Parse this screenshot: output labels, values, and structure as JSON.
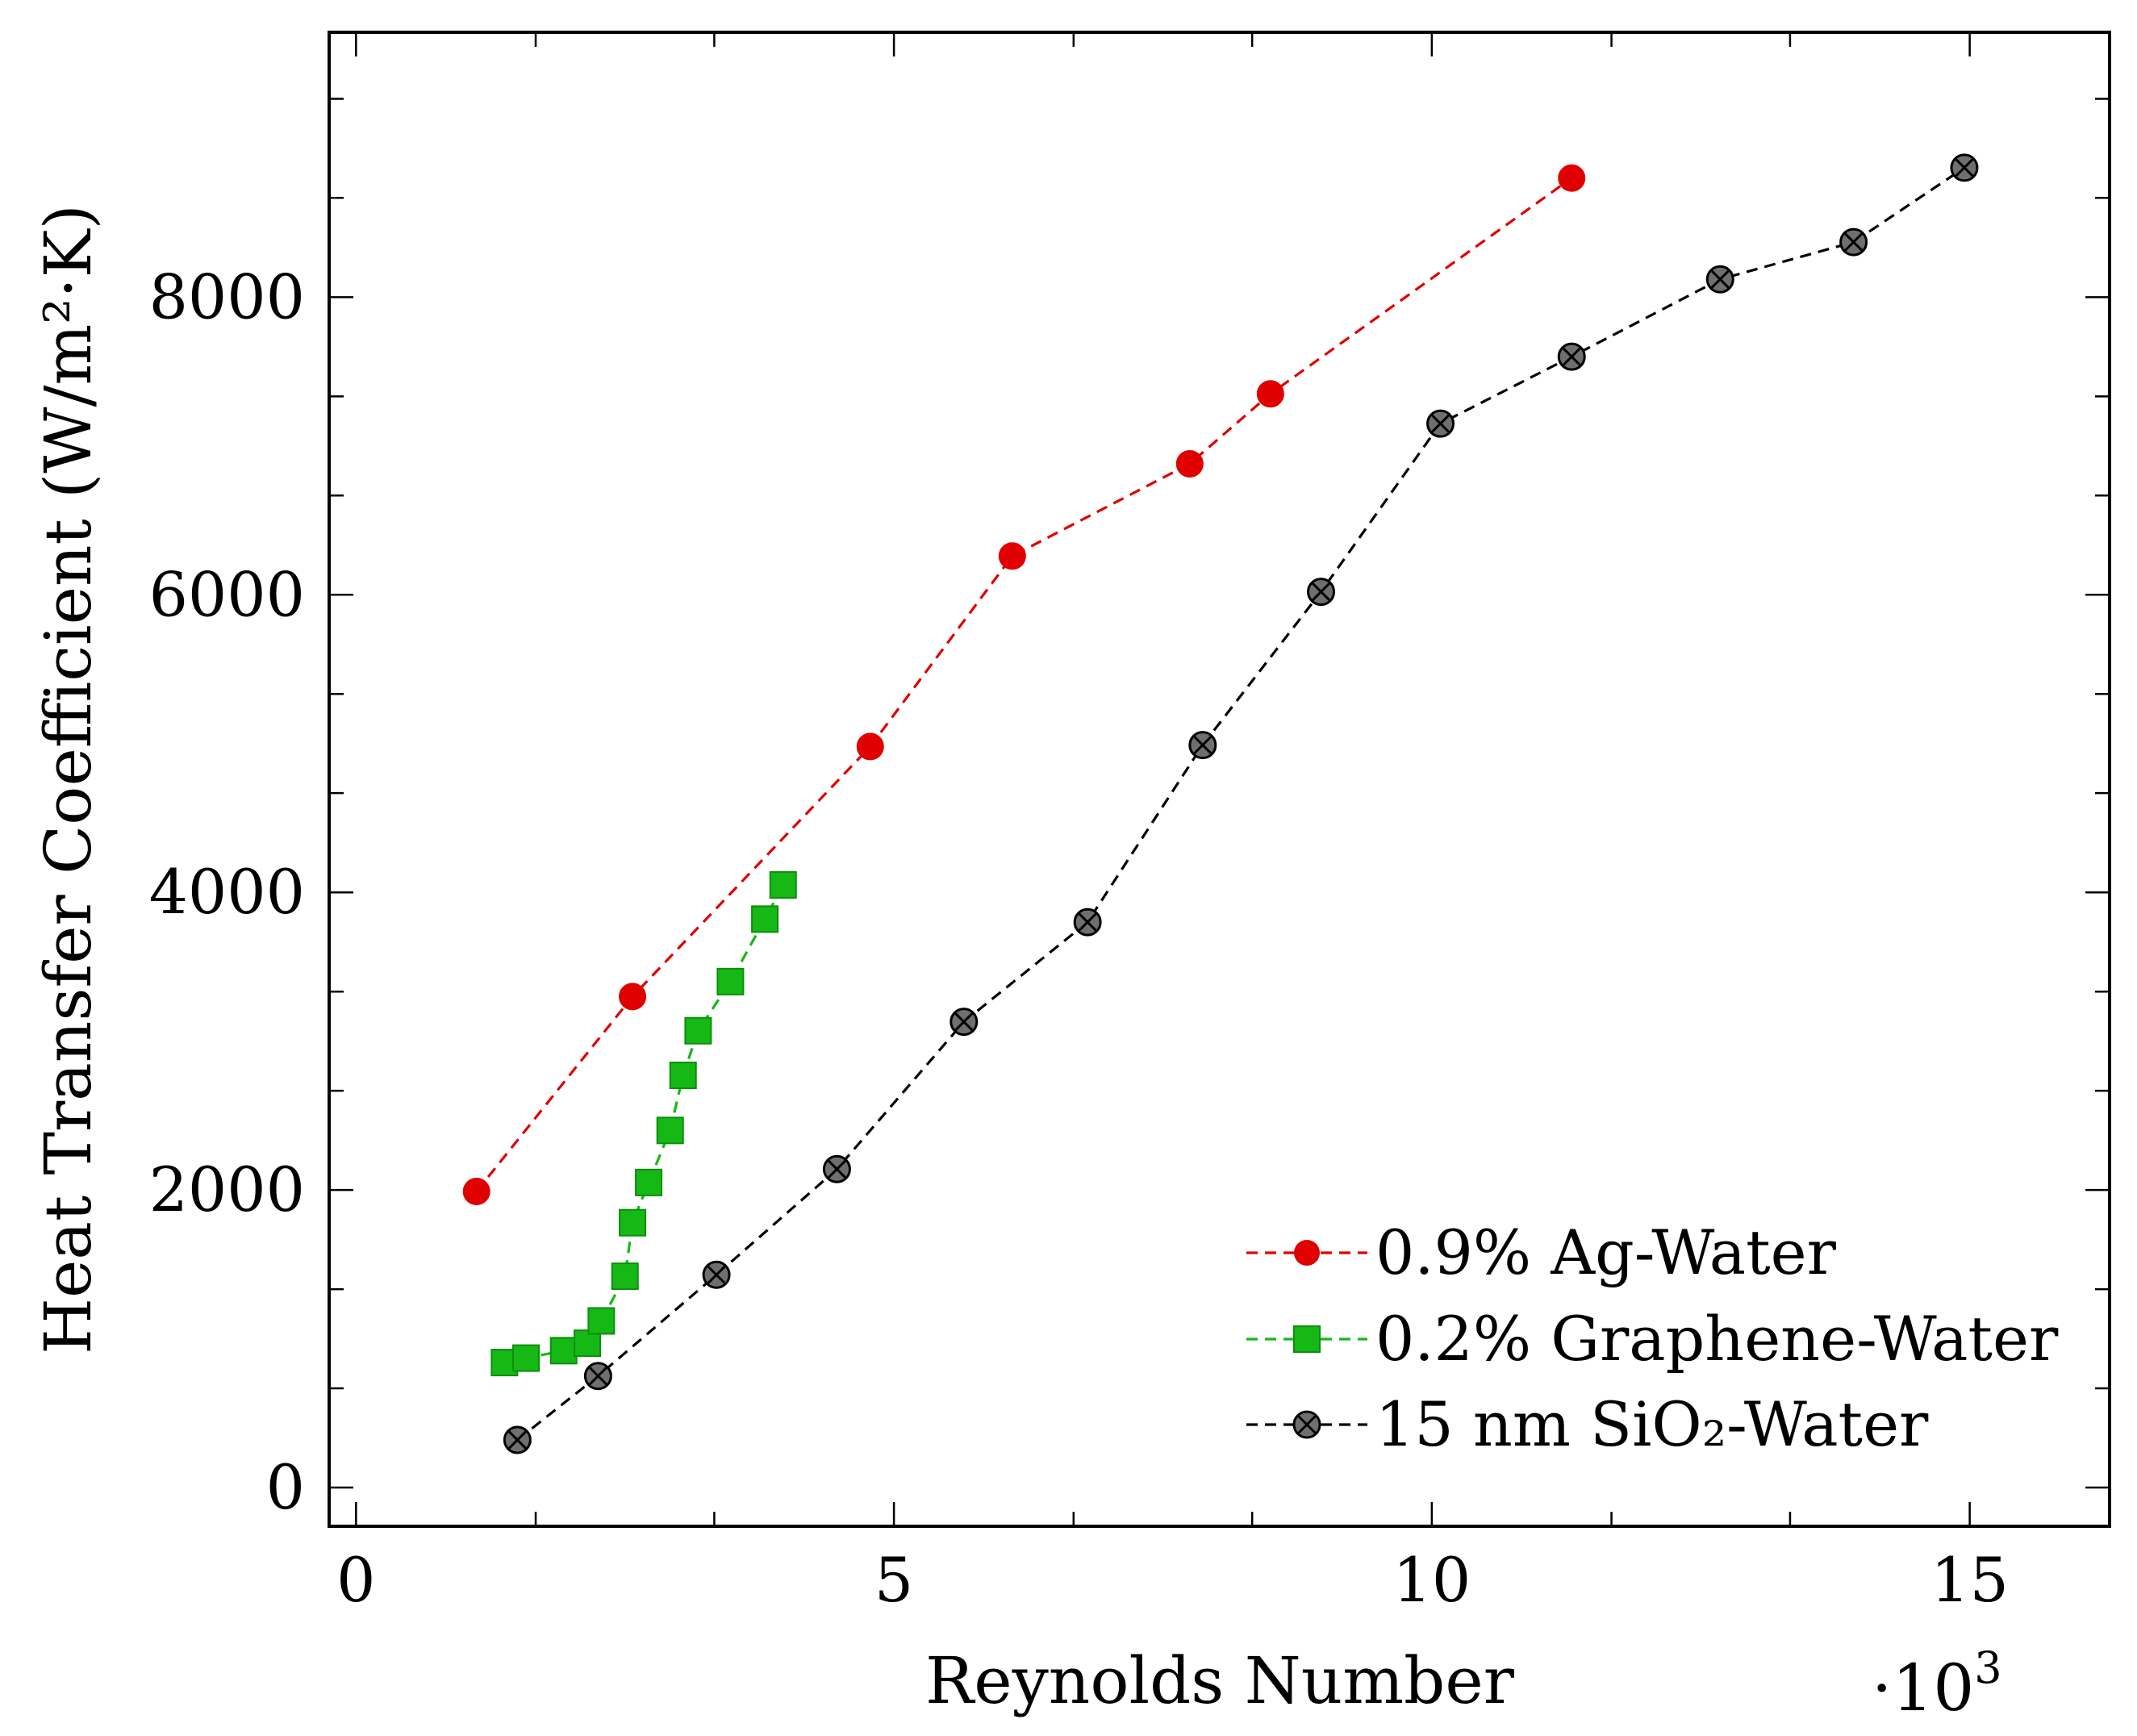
{
  "chart_data": {
    "type": "line",
    "title": "",
    "xlabel": "Reynolds Number",
    "ylabel": "Heat Transfer Coefficient (W/m²·K)",
    "x_multiplier_label": "·10",
    "x_multiplier_exponent": "3",
    "xlim": [
      -0.25,
      16.3
    ],
    "ylim": [
      -260,
      9780
    ],
    "x_ticks": [
      0,
      5,
      10,
      15
    ],
    "x_tick_labels": [
      "0",
      "5",
      "10",
      "15"
    ],
    "x_minor_ticks": [
      1.67,
      3.33,
      6.67,
      8.33,
      11.67,
      13.33
    ],
    "y_ticks": [
      0,
      2000,
      4000,
      6000,
      8000
    ],
    "y_tick_labels": [
      "0",
      "2000",
      "4000",
      "6000",
      "8000"
    ],
    "y_minor_ticks": [
      667,
      1333,
      2667,
      3333,
      4667,
      5333,
      6667,
      7333,
      8667,
      9333
    ],
    "legend_position": "bottom-right",
    "grid": false,
    "series": [
      {
        "name": "0.9% Ag-Water",
        "color": "#e00000",
        "marker": "circle",
        "x": [
          1.12,
          2.57,
          4.78,
          6.1,
          7.75,
          8.5,
          11.3
        ],
        "y": [
          1990,
          3300,
          4980,
          6260,
          6880,
          7350,
          8800
        ]
      },
      {
        "name": "0.2% Graphene-Water",
        "color": "#16b816",
        "marker": "square",
        "x": [
          1.38,
          1.58,
          1.93,
          2.15,
          2.28,
          2.5,
          2.57,
          2.72,
          2.92,
          3.04,
          3.18,
          3.48,
          3.8,
          3.97
        ],
        "y": [
          840,
          870,
          920,
          970,
          1120,
          1420,
          1780,
          2050,
          2400,
          2770,
          3070,
          3400,
          3820,
          4050
        ]
      },
      {
        "name": "15 nm SiO₂-Water",
        "color": "#000000",
        "marker": "circle-x",
        "x": [
          1.5,
          2.25,
          3.35,
          4.47,
          5.65,
          6.8,
          7.87,
          8.97,
          10.08,
          11.3,
          12.68,
          13.92,
          14.95
        ],
        "y": [
          320,
          750,
          1430,
          2140,
          3130,
          3800,
          4990,
          6020,
          7150,
          7600,
          8120,
          8370,
          8870
        ]
      }
    ]
  }
}
